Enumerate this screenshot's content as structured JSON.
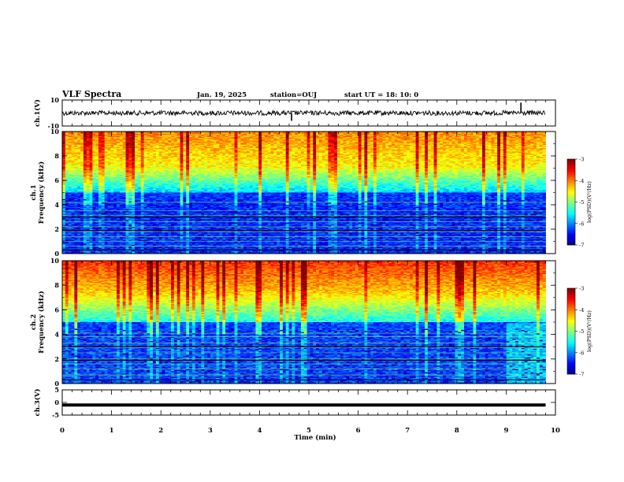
{
  "header": {
    "title": "VLF Spectra",
    "date": "Jan. 19, 2025",
    "station": "station=OUJ",
    "start": "start  UT =   18: 10: 0"
  },
  "colors": {
    "background": "#ffffff",
    "axis": "#000000",
    "colormap": [
      "#000080",
      "#0000ff",
      "#00ffff",
      "#00ff00",
      "#ffff00",
      "#ff8000",
      "#ff0000",
      "#ffffff"
    ]
  },
  "chart_data": [
    {
      "type": "line",
      "ylabel": "ch.1(V)",
      "ylim": [
        -10,
        10
      ],
      "yticks": [
        "10",
        "-10"
      ],
      "x": [
        0,
        4.65,
        9.3,
        9.8
      ],
      "values": [
        0.0,
        -1.5,
        2.0,
        0.0
      ],
      "xlim": [
        0,
        10
      ]
    },
    {
      "type": "heatmap",
      "ylabel": "ch.1\nFrequency (kHz)",
      "ylim": [
        0,
        10
      ],
      "yticks": [
        "0",
        "2",
        "4",
        "6",
        "8",
        "10"
      ],
      "xlim": [
        0,
        10
      ],
      "colorbar": {
        "label": "log(PSD)(V²/Hz)",
        "range": [
          -7,
          -3
        ],
        "ticks": [
          "-3",
          "-4",
          "-5",
          "-6",
          "-7"
        ]
      }
    },
    {
      "type": "heatmap",
      "ylabel": "ch.2\nFrequency (kHz)",
      "ylim": [
        0,
        10
      ],
      "yticks": [
        "0",
        "2",
        "4",
        "6",
        "8",
        "10"
      ],
      "xlim": [
        0,
        10
      ],
      "colorbar": {
        "label": "log(PSD)(V²/Hz)",
        "range": [
          -7,
          -3
        ],
        "ticks": [
          "-3",
          "-4",
          "-5",
          "-6",
          "-7"
        ]
      }
    },
    {
      "type": "line",
      "ylabel": "ch.3(V)",
      "ylim": [
        -5,
        5
      ],
      "yticks": [
        "5",
        "0",
        "-5"
      ],
      "x": [
        0,
        9.8
      ],
      "values": [
        -1.0,
        -1.0
      ],
      "xlim": [
        0,
        10
      ]
    }
  ],
  "x_axis": {
    "label": "Time (min)",
    "ticks": [
      "0",
      "1",
      "2",
      "3",
      "4",
      "5",
      "6",
      "7",
      "8",
      "9",
      "10"
    ]
  }
}
